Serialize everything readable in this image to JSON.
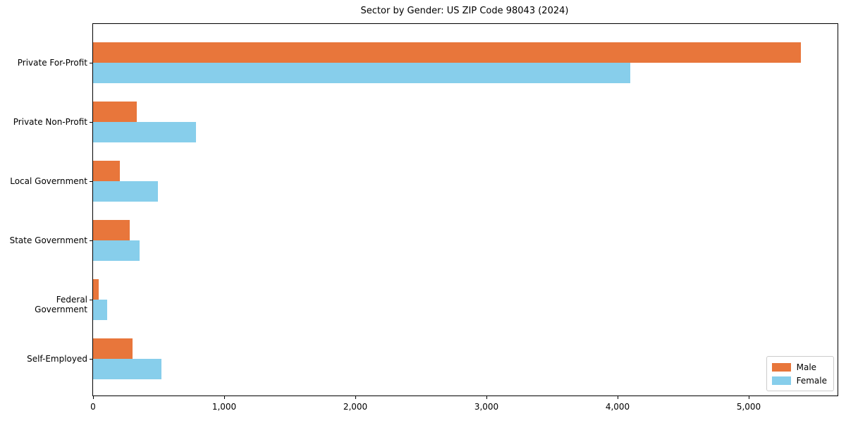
{
  "title": "Sector by Gender: US ZIP Code 98043 (2024)",
  "colors": {
    "male": "#E8763B",
    "female": "#87CEEB",
    "spine": "#000000",
    "legend_border": "#CCCCCC",
    "background": "#FFFFFF"
  },
  "chart_data": {
    "type": "bar",
    "orientation": "horizontal",
    "title": "Sector by Gender: US ZIP Code 98043 (2024)",
    "categories": [
      "Private For-Profit",
      "Private Non-Profit",
      "Local Government",
      "State Government",
      "Federal Government",
      "Self-Employed"
    ],
    "series": [
      {
        "name": "Male",
        "color": "#E8763B",
        "values": [
          5400,
          335,
          205,
          280,
          45,
          300
        ]
      },
      {
        "name": "Female",
        "color": "#87CEEB",
        "values": [
          4100,
          785,
          495,
          355,
          110,
          520
        ]
      }
    ],
    "xlabel": "",
    "ylabel": "",
    "xlim": [
      0,
      5680
    ],
    "xticks": [
      0,
      1000,
      2000,
      3000,
      4000,
      5000
    ],
    "xtick_labels": [
      "0",
      "1,000",
      "2,000",
      "3,000",
      "4,000",
      "5,000"
    ],
    "legend_position": "lower right",
    "grid": false
  }
}
